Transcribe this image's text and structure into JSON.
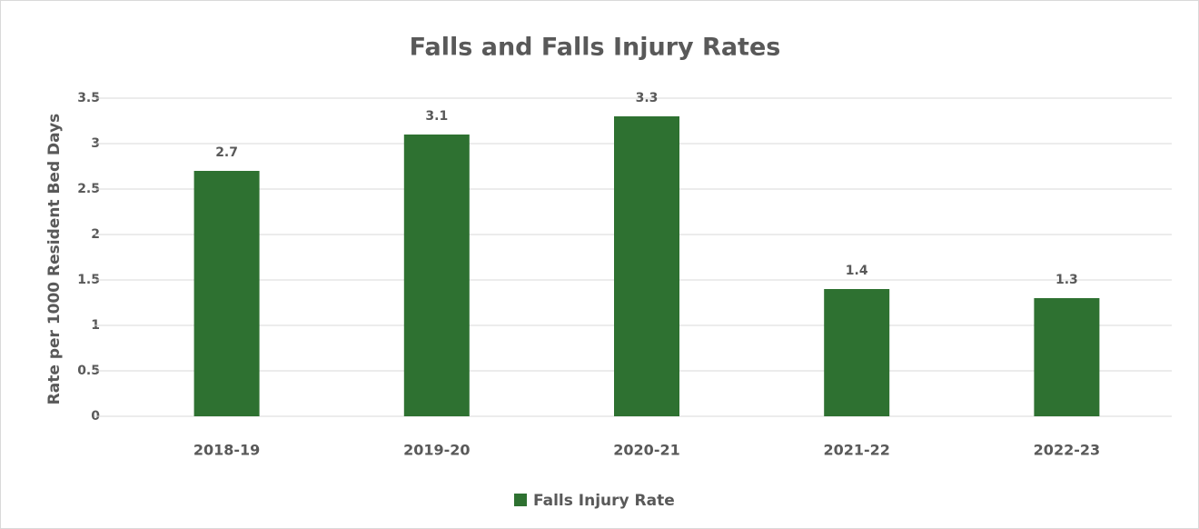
{
  "chart_data": {
    "type": "bar",
    "title": "Falls and Falls Injury Rates",
    "y_label": "Rate per 1000 Resident Bed Days",
    "categories": [
      "2018-19",
      "2019-20",
      "2020-21",
      "2021-22",
      "2022-23"
    ],
    "series": [
      {
        "name": "Falls Injury Rate",
        "color": "#2e7131",
        "values": [
          2.7,
          3.1,
          3.3,
          1.4,
          1.3
        ]
      }
    ],
    "ylim": [
      0,
      3.5
    ],
    "yticks": [
      0,
      0.5,
      1,
      1.5,
      2,
      2.5,
      3,
      3.5
    ],
    "grid": true,
    "legend": "bottom"
  }
}
